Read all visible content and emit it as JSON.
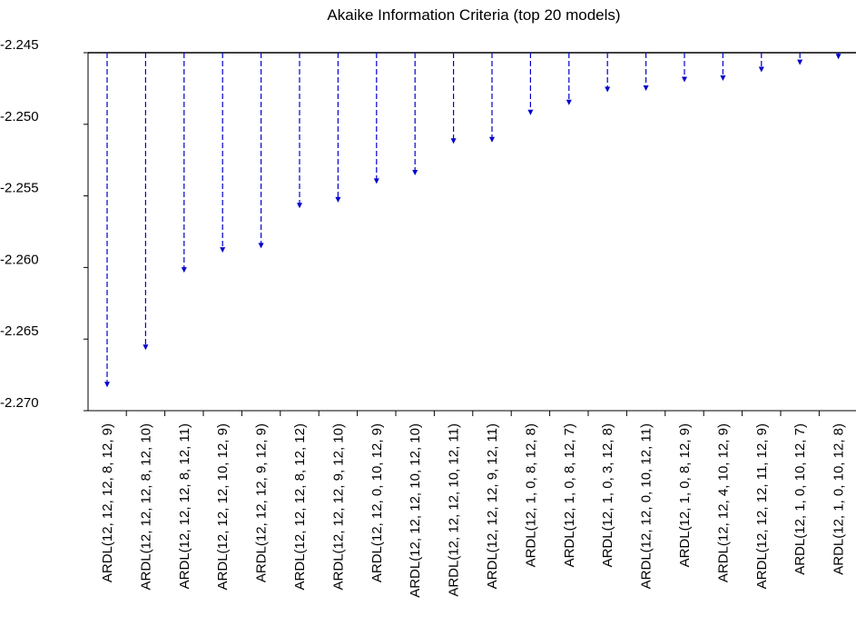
{
  "chart_data": {
    "type": "bar",
    "title": "Akaike Information Criteria (top 20 models)",
    "xlabel": "",
    "ylabel": "",
    "ylim": [
      -2.27,
      -2.245
    ],
    "yticks": [
      -2.245,
      -2.25,
      -2.255,
      -2.26,
      -2.265,
      -2.27
    ],
    "ytick_labels": [
      "-2.245",
      "-2.250",
      "-2.255",
      "-2.260",
      "-2.265",
      "-2.270"
    ],
    "categories": [
      "ARDL(12, 12, 12, 8, 12, 9)",
      "ARDL(12, 12, 12, 8, 12, 10)",
      "ARDL(12, 12, 12, 8, 12, 11)",
      "ARDL(12, 12, 12, 10, 12, 9)",
      "ARDL(12, 12, 12, 9, 12, 9)",
      "ARDL(12, 12, 12, 8, 12, 12)",
      "ARDL(12, 12, 12, 9, 12, 10)",
      "ARDL(12, 12, 0, 10, 12, 9)",
      "ARDL(12, 12, 12, 10, 12, 10)",
      "ARDL(12, 12, 12, 10, 12, 11)",
      "ARDL(12, 12, 12, 9, 12, 11)",
      "ARDL(12, 1, 0, 8, 12, 8)",
      "ARDL(12, 1, 0, 8, 12, 7)",
      "ARDL(12, 1, 0, 3, 12, 8)",
      "ARDL(12, 12, 0, 10, 12, 11)",
      "ARDL(12, 1, 0, 8, 12, 9)",
      "ARDL(12, 12, 4, 10, 12, 9)",
      "ARDL(12, 12, 12, 11, 12, 9)",
      "ARDL(12, 1, 0, 10, 12, 7)",
      "ARDL(12, 1, 0, 10, 12, 8)"
    ],
    "values": [
      -2.2683,
      -2.2657,
      -2.2603,
      -2.2589,
      -2.2586,
      -2.2558,
      -2.2554,
      -2.2541,
      -2.2535,
      -2.2513,
      -2.2512,
      -2.2493,
      -2.2486,
      -2.2477,
      -2.2476,
      -2.247,
      -2.2469,
      -2.2463,
      -2.2458,
      -2.2454
    ],
    "grid": false,
    "legend": "none",
    "colors": {
      "series": "#0000cc",
      "axis": "#000000",
      "background": "#ffffff"
    }
  }
}
